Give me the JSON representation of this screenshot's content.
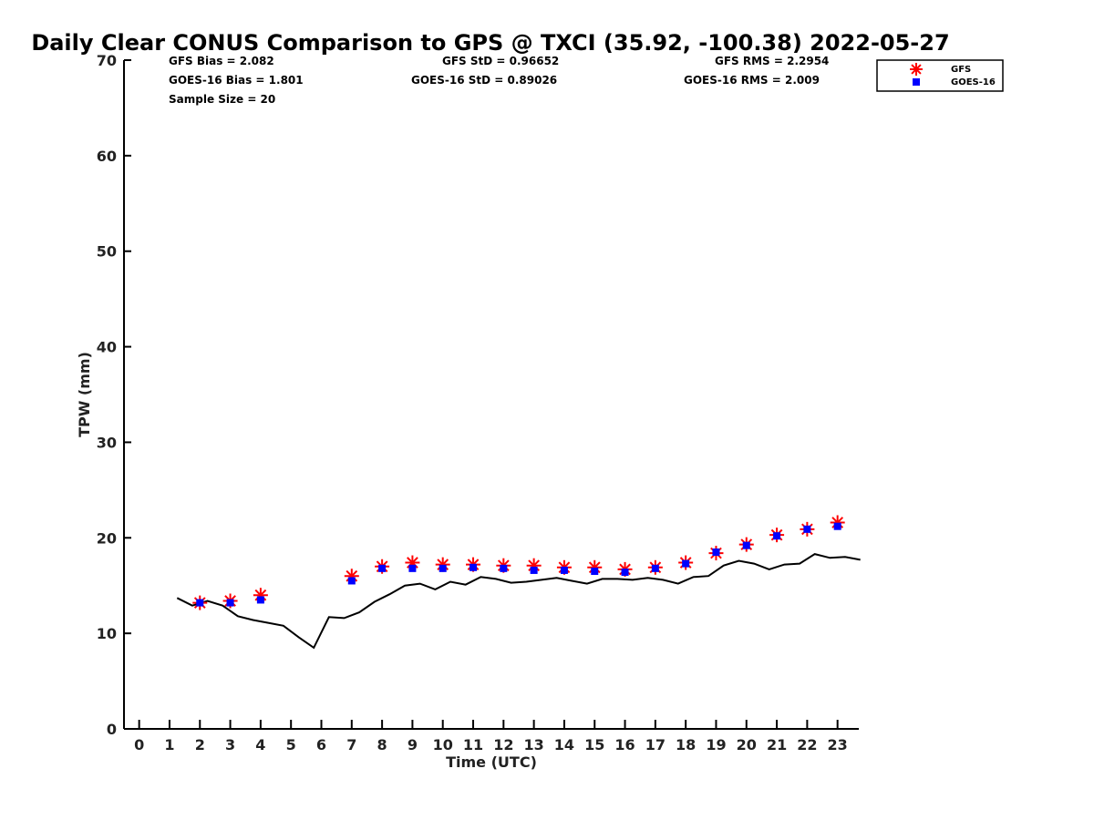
{
  "chart_data": {
    "type": "scatter",
    "title": "Daily Clear CONUS Comparison to GPS @ TXCI (35.92, -100.38) 2022-05-27",
    "xlabel": "Time (UTC)",
    "ylabel": "TPW (mm)",
    "xlim": [
      -0.5,
      23.7
    ],
    "ylim": [
      0,
      70
    ],
    "xticks": [
      "0",
      "1",
      "2",
      "3",
      "4",
      "5",
      "6",
      "7",
      "8",
      "9",
      "10",
      "11",
      "12",
      "13",
      "14",
      "15",
      "16",
      "17",
      "18",
      "19",
      "20",
      "21",
      "22",
      "23"
    ],
    "yticks": [
      "0",
      "10",
      "20",
      "30",
      "40",
      "50",
      "60",
      "70"
    ],
    "grid": false,
    "legend_position": "top-right, outside plot",
    "stats": {
      "gfs_bias": "GFS Bias = 2.082",
      "goes_bias": "GOES-16 Bias = 1.801",
      "sample_size": "Sample Size = 20",
      "gfs_std": "GFS StD = 0.96652",
      "goes_std": "GOES-16 StD = 0.89026",
      "gfs_rms": "GFS RMS = 2.2954",
      "goes_rms": "GOES-16 RMS = 2.009"
    },
    "series": [
      {
        "name": "GFS",
        "marker": "asterisk",
        "color": "#ff0000",
        "x": [
          2,
          3,
          4,
          7,
          8,
          9,
          10,
          11,
          12,
          13,
          14,
          15,
          16,
          17,
          18,
          19,
          20,
          21,
          22,
          23
        ],
        "y": [
          13.2,
          13.4,
          14.0,
          16.0,
          17.0,
          17.4,
          17.2,
          17.2,
          17.1,
          17.1,
          16.9,
          16.9,
          16.7,
          16.9,
          17.4,
          18.4,
          19.3,
          20.3,
          20.9,
          21.6
        ]
      },
      {
        "name": "GOES-16",
        "marker": "square",
        "color": "#0000ff",
        "x": [
          2,
          3,
          4,
          7,
          8,
          9,
          10,
          11,
          12,
          13,
          14,
          15,
          16,
          17,
          18,
          19,
          20,
          21,
          22,
          23
        ],
        "y": [
          13.2,
          13.2,
          13.5,
          15.5,
          16.8,
          16.8,
          16.8,
          16.9,
          16.8,
          16.6,
          16.6,
          16.5,
          16.4,
          16.8,
          17.3,
          18.5,
          19.2,
          20.2,
          20.9,
          21.2
        ]
      },
      {
        "marker": "line",
        "color": "#000000",
        "x": [
          1.25,
          1.75,
          2.25,
          2.75,
          3.25,
          3.75,
          4.25,
          4.75,
          5.25,
          5.75,
          6.25,
          6.75,
          7.25,
          7.75,
          8.25,
          8.75,
          9.25,
          9.75,
          10.25,
          10.75,
          11.25,
          11.75,
          12.25,
          12.75,
          13.25,
          13.75,
          14.25,
          14.75,
          15.25,
          15.75,
          16.25,
          16.75,
          17.25,
          17.75,
          18.25,
          18.75,
          19.25,
          19.75,
          20.25,
          20.75,
          21.25,
          21.75,
          22.25,
          22.75,
          23.25,
          23.75
        ],
        "y": [
          13.7,
          12.9,
          13.4,
          12.9,
          11.8,
          11.4,
          11.1,
          10.8,
          9.6,
          8.5,
          11.7,
          11.6,
          12.2,
          13.3,
          14.1,
          15.0,
          15.2,
          14.6,
          15.4,
          15.1,
          15.9,
          15.7,
          15.3,
          15.4,
          15.6,
          15.8,
          15.5,
          15.2,
          15.7,
          15.7,
          15.6,
          15.8,
          15.6,
          15.2,
          15.9,
          16.0,
          17.1,
          17.6,
          17.3,
          16.7,
          17.2,
          17.3,
          18.3,
          17.9,
          18.0,
          17.7
        ]
      }
    ]
  }
}
